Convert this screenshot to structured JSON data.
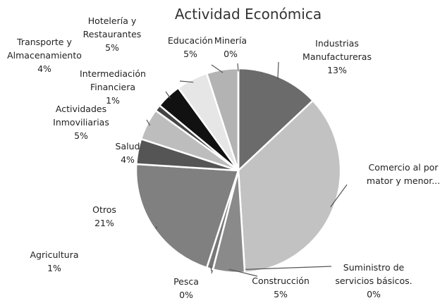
{
  "chart_data": {
    "type": "pie",
    "title": "Actividad Económica",
    "categories": [
      "Industrias\nManufactureras",
      "Comercio al por\nmator y menor...",
      "Suministro de\nservicios básicos.",
      "Construcción",
      "Pesca",
      "Agricultura",
      "Otros",
      "Salud",
      "Actividades\nInmoviliarias",
      "Intermediación\nFinanciera",
      "Transporte y\nAlmacenamiento",
      "Hotelería y\nRestaurantes",
      "Educación",
      "Minería"
    ],
    "values": [
      13,
      36,
      0,
      5,
      0,
      1,
      21,
      4,
      5,
      1,
      4,
      5,
      5,
      0
    ],
    "value_labels": [
      "13%",
      null,
      "0%",
      "5%",
      "0%",
      "1%",
      "21%",
      "4%",
      "5%",
      "1%",
      "4%",
      "5%",
      "5%",
      "0%"
    ],
    "colors": [
      "#6b6b6b",
      "#c2c2c2",
      "#8c8c8c",
      "#8a8a8a",
      "#999999",
      "#777777",
      "#808080",
      "#555555",
      "#bdbdbd",
      "#444444",
      "#111111",
      "#e6e6e6",
      "#b3b3b3",
      "#999999"
    ]
  }
}
